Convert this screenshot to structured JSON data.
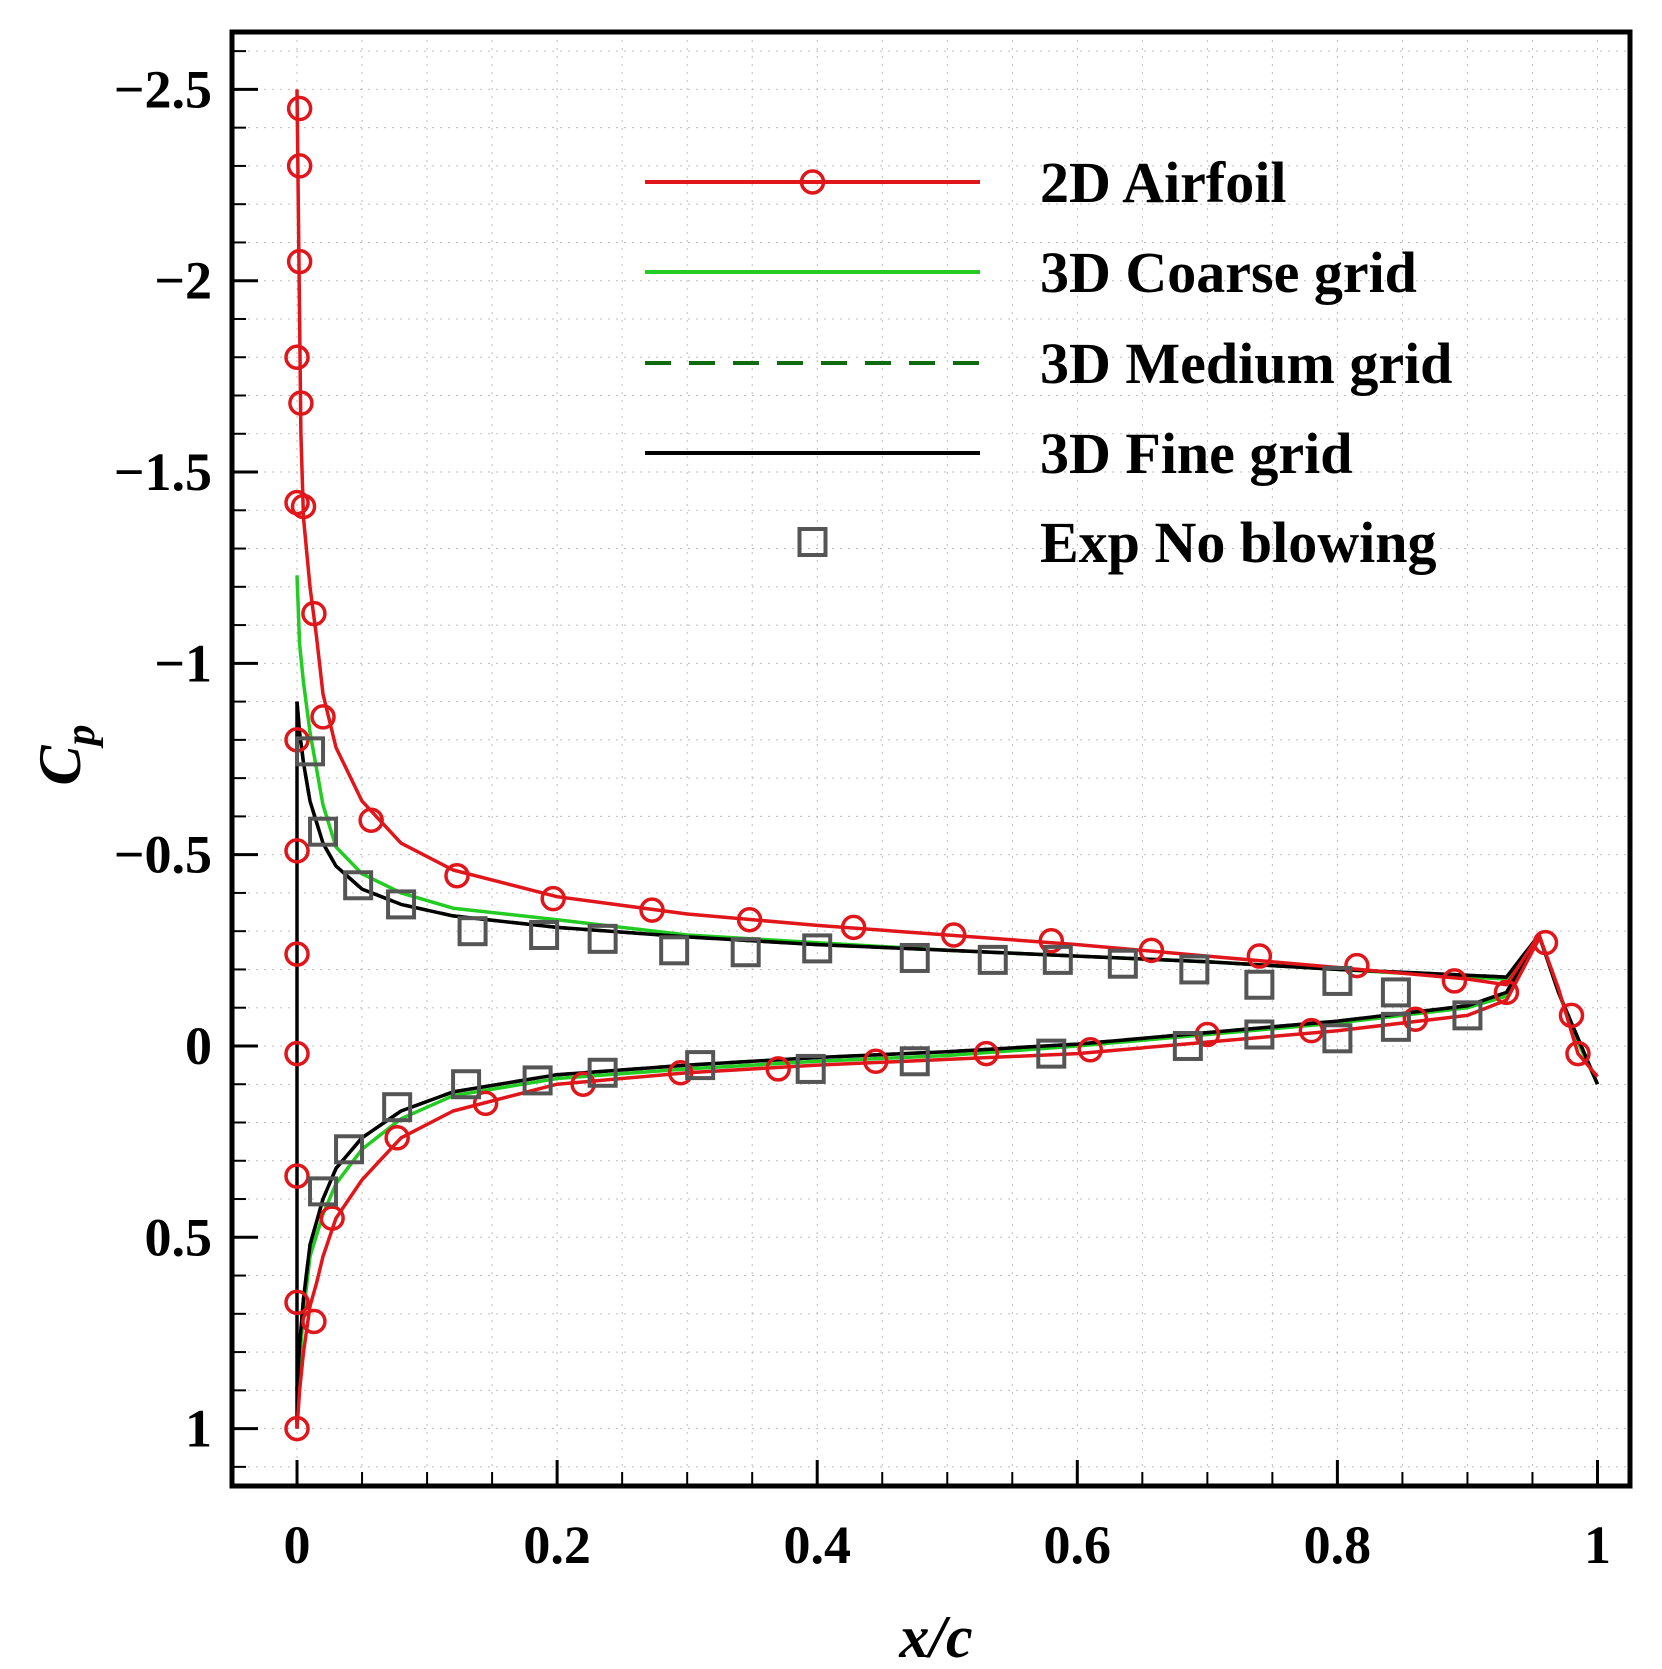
{
  "chart_data": {
    "type": "line",
    "title": "",
    "xlabel": "x/c",
    "ylabel_main": "C",
    "ylabel_sub": "p",
    "xlim": [
      -0.05,
      1.025
    ],
    "ylim": [
      1.15,
      -2.65
    ],
    "x_ticks": [
      {
        "value": 0,
        "label": "0"
      },
      {
        "value": 0.2,
        "label": "0.2"
      },
      {
        "value": 0.4,
        "label": "0.4"
      },
      {
        "value": 0.6,
        "label": "0.6"
      },
      {
        "value": 0.8,
        "label": "0.8"
      },
      {
        "value": 1,
        "label": "1"
      }
    ],
    "y_ticks": [
      {
        "value": -2.5,
        "label": "−2.5"
      },
      {
        "value": -2,
        "label": "−2"
      },
      {
        "value": -1.5,
        "label": "−1.5"
      },
      {
        "value": -1,
        "label": "−1"
      },
      {
        "value": -0.5,
        "label": "−0.5"
      },
      {
        "value": 0,
        "label": "0"
      },
      {
        "value": 0.5,
        "label": "0.5"
      },
      {
        "value": 1,
        "label": "1"
      }
    ],
    "grid": true,
    "legend_position": "top-right",
    "series": [
      {
        "name": "2D Airfoil",
        "color": "#e0161b",
        "style": "solid",
        "marker": "circle",
        "upper": [
          [
            0,
            -2.5
          ],
          [
            0.001,
            -2.2
          ],
          [
            0.002,
            -1.9
          ],
          [
            0.003,
            -1.6
          ],
          [
            0.005,
            -1.38
          ],
          [
            0.01,
            -1.2
          ],
          [
            0.015,
            -1.07
          ],
          [
            0.02,
            -0.92
          ],
          [
            0.03,
            -0.78
          ],
          [
            0.05,
            -0.64
          ],
          [
            0.08,
            -0.53
          ],
          [
            0.12,
            -0.46
          ],
          [
            0.2,
            -0.39
          ],
          [
            0.3,
            -0.345
          ],
          [
            0.4,
            -0.315
          ],
          [
            0.5,
            -0.29
          ],
          [
            0.6,
            -0.265
          ],
          [
            0.7,
            -0.235
          ],
          [
            0.8,
            -0.205
          ],
          [
            0.9,
            -0.175
          ],
          [
            0.93,
            -0.16
          ],
          [
            0.955,
            -0.29
          ],
          [
            0.97,
            -0.15
          ],
          [
            0.985,
            0.02
          ],
          [
            1.0,
            0.08
          ]
        ],
        "lower": [
          [
            0,
            1.0
          ],
          [
            0.002,
            0.9
          ],
          [
            0.005,
            0.8
          ],
          [
            0.01,
            0.68
          ],
          [
            0.015,
            0.62
          ],
          [
            0.02,
            0.55
          ],
          [
            0.03,
            0.45
          ],
          [
            0.05,
            0.35
          ],
          [
            0.08,
            0.24
          ],
          [
            0.12,
            0.17
          ],
          [
            0.2,
            0.1
          ],
          [
            0.3,
            0.07
          ],
          [
            0.4,
            0.05
          ],
          [
            0.5,
            0.035
          ],
          [
            0.6,
            0.02
          ],
          [
            0.7,
            -0.01
          ],
          [
            0.8,
            -0.04
          ],
          [
            0.9,
            -0.08
          ],
          [
            0.93,
            -0.12
          ],
          [
            0.955,
            -0.28
          ]
        ],
        "marker_points": [
          [
            0.002,
            -2.45
          ],
          [
            0.002,
            -2.3
          ],
          [
            0.002,
            -2.05
          ],
          [
            0.0,
            -1.8
          ],
          [
            0.003,
            -1.68
          ],
          [
            0.0,
            -1.42
          ],
          [
            0.005,
            -1.41
          ],
          [
            0.013,
            -1.13
          ],
          [
            0.02,
            -0.86
          ],
          [
            0.057,
            -0.59
          ],
          [
            0.123,
            -0.445
          ],
          [
            0.197,
            -0.385
          ],
          [
            0.273,
            -0.355
          ],
          [
            0.348,
            -0.33
          ],
          [
            0.428,
            -0.31
          ],
          [
            0.505,
            -0.29
          ],
          [
            0.58,
            -0.275
          ],
          [
            0.657,
            -0.25
          ],
          [
            0.74,
            -0.235
          ],
          [
            0.815,
            -0.21
          ],
          [
            0.89,
            -0.17
          ],
          [
            0.93,
            -0.14
          ],
          [
            0.96,
            -0.27
          ],
          [
            0.98,
            -0.08
          ],
          [
            0.985,
            0.02
          ],
          [
            0.0,
            -0.8
          ],
          [
            0.0,
            -0.51
          ],
          [
            0.0,
            -0.24
          ],
          [
            0.0,
            0.02
          ],
          [
            0.0,
            0.34
          ],
          [
            0.0,
            0.67
          ],
          [
            0.0,
            1.0
          ],
          [
            0.013,
            0.72
          ],
          [
            0.027,
            0.45
          ],
          [
            0.077,
            0.24
          ],
          [
            0.145,
            0.15
          ],
          [
            0.22,
            0.1
          ],
          [
            0.295,
            0.07
          ],
          [
            0.37,
            0.06
          ],
          [
            0.445,
            0.04
          ],
          [
            0.53,
            0.02
          ],
          [
            0.61,
            0.01
          ],
          [
            0.7,
            -0.03
          ],
          [
            0.78,
            -0.04
          ],
          [
            0.86,
            -0.07
          ]
        ]
      },
      {
        "name": "3D Coarse grid",
        "color": "#22cc22",
        "style": "solid",
        "marker": "none",
        "upper": [
          [
            0,
            -1.23
          ],
          [
            0.002,
            -1.05
          ],
          [
            0.005,
            -0.95
          ],
          [
            0.01,
            -0.82
          ],
          [
            0.02,
            -0.63
          ],
          [
            0.03,
            -0.52
          ],
          [
            0.05,
            -0.45
          ],
          [
            0.08,
            -0.4
          ],
          [
            0.12,
            -0.36
          ],
          [
            0.2,
            -0.33
          ],
          [
            0.3,
            -0.29
          ],
          [
            0.4,
            -0.27
          ],
          [
            0.5,
            -0.25
          ],
          [
            0.6,
            -0.235
          ],
          [
            0.7,
            -0.22
          ],
          [
            0.8,
            -0.2
          ],
          [
            0.9,
            -0.18
          ],
          [
            0.93,
            -0.175
          ],
          [
            0.955,
            -0.29
          ],
          [
            0.97,
            -0.14
          ],
          [
            0.985,
            -0.01
          ],
          [
            1.0,
            0.1
          ]
        ],
        "lower": [
          [
            0,
            0.93
          ],
          [
            0.002,
            0.82
          ],
          [
            0.005,
            0.7
          ],
          [
            0.01,
            0.55
          ],
          [
            0.02,
            0.44
          ],
          [
            0.03,
            0.36
          ],
          [
            0.05,
            0.27
          ],
          [
            0.08,
            0.19
          ],
          [
            0.12,
            0.13
          ],
          [
            0.2,
            0.085
          ],
          [
            0.3,
            0.06
          ],
          [
            0.4,
            0.04
          ],
          [
            0.5,
            0.025
          ],
          [
            0.6,
            0.0
          ],
          [
            0.7,
            -0.03
          ],
          [
            0.8,
            -0.06
          ],
          [
            0.9,
            -0.1
          ],
          [
            0.93,
            -0.13
          ],
          [
            0.955,
            -0.29
          ]
        ]
      },
      {
        "name": "3D Medium grid",
        "color": "#0f6b0f",
        "style": "dashed",
        "marker": "none",
        "upper": [
          [
            0,
            -0.9
          ],
          [
            0.002,
            -0.82
          ],
          [
            0.005,
            -0.74
          ],
          [
            0.01,
            -0.64
          ],
          [
            0.02,
            -0.53
          ],
          [
            0.03,
            -0.47
          ],
          [
            0.05,
            -0.41
          ],
          [
            0.08,
            -0.37
          ],
          [
            0.12,
            -0.34
          ],
          [
            0.2,
            -0.31
          ],
          [
            0.3,
            -0.285
          ],
          [
            0.4,
            -0.265
          ],
          [
            0.5,
            -0.25
          ],
          [
            0.6,
            -0.235
          ],
          [
            0.7,
            -0.22
          ],
          [
            0.8,
            -0.2
          ],
          [
            0.9,
            -0.185
          ],
          [
            0.93,
            -0.18
          ],
          [
            0.955,
            -0.29
          ],
          [
            0.97,
            -0.14
          ],
          [
            0.985,
            -0.02
          ],
          [
            1.0,
            0.1
          ]
        ],
        "lower": [
          [
            0,
            0.9
          ],
          [
            0.002,
            0.78
          ],
          [
            0.005,
            0.66
          ],
          [
            0.01,
            0.52
          ],
          [
            0.02,
            0.4
          ],
          [
            0.03,
            0.32
          ],
          [
            0.05,
            0.24
          ],
          [
            0.08,
            0.17
          ],
          [
            0.12,
            0.12
          ],
          [
            0.2,
            0.075
          ],
          [
            0.3,
            0.05
          ],
          [
            0.4,
            0.03
          ],
          [
            0.5,
            0.015
          ],
          [
            0.6,
            -0.005
          ],
          [
            0.7,
            -0.035
          ],
          [
            0.8,
            -0.065
          ],
          [
            0.9,
            -0.105
          ],
          [
            0.93,
            -0.14
          ],
          [
            0.955,
            -0.29
          ]
        ]
      },
      {
        "name": "3D Fine grid",
        "color": "#000000",
        "style": "solid",
        "marker": "none",
        "upper": [
          [
            0,
            -0.9
          ],
          [
            0.002,
            -0.82
          ],
          [
            0.005,
            -0.74
          ],
          [
            0.01,
            -0.64
          ],
          [
            0.02,
            -0.53
          ],
          [
            0.03,
            -0.47
          ],
          [
            0.05,
            -0.41
          ],
          [
            0.08,
            -0.37
          ],
          [
            0.12,
            -0.34
          ],
          [
            0.2,
            -0.31
          ],
          [
            0.3,
            -0.285
          ],
          [
            0.4,
            -0.265
          ],
          [
            0.5,
            -0.25
          ],
          [
            0.6,
            -0.235
          ],
          [
            0.7,
            -0.22
          ],
          [
            0.8,
            -0.2
          ],
          [
            0.9,
            -0.185
          ],
          [
            0.93,
            -0.18
          ],
          [
            0.955,
            -0.29
          ],
          [
            0.97,
            -0.14
          ],
          [
            0.985,
            -0.02
          ],
          [
            1.0,
            0.1
          ]
        ],
        "lower": [
          [
            0,
            0.9
          ],
          [
            0.002,
            0.78
          ],
          [
            0.005,
            0.66
          ],
          [
            0.01,
            0.52
          ],
          [
            0.02,
            0.4
          ],
          [
            0.03,
            0.32
          ],
          [
            0.05,
            0.24
          ],
          [
            0.08,
            0.17
          ],
          [
            0.12,
            0.12
          ],
          [
            0.2,
            0.075
          ],
          [
            0.3,
            0.05
          ],
          [
            0.4,
            0.03
          ],
          [
            0.5,
            0.015
          ],
          [
            0.6,
            -0.005
          ],
          [
            0.7,
            -0.035
          ],
          [
            0.8,
            -0.065
          ],
          [
            0.9,
            -0.105
          ],
          [
            0.93,
            -0.14
          ],
          [
            0.955,
            -0.29
          ]
        ],
        "extra": [
          [
            [
              0.0,
              -0.9
            ],
            [
              0.0,
              1.0
            ]
          ]
        ]
      },
      {
        "name": "Exp No blowing",
        "color": "#555555",
        "style": "none",
        "marker": "square",
        "marker_points": [
          [
            0.01,
            -0.77
          ],
          [
            0.02,
            -0.56
          ],
          [
            0.047,
            -0.42
          ],
          [
            0.08,
            -0.37
          ],
          [
            0.135,
            -0.3
          ],
          [
            0.19,
            -0.29
          ],
          [
            0.235,
            -0.28
          ],
          [
            0.29,
            -0.25
          ],
          [
            0.345,
            -0.245
          ],
          [
            0.4,
            -0.255
          ],
          [
            0.475,
            -0.23
          ],
          [
            0.535,
            -0.225
          ],
          [
            0.585,
            -0.225
          ],
          [
            0.635,
            -0.215
          ],
          [
            0.69,
            -0.2
          ],
          [
            0.74,
            -0.16
          ],
          [
            0.8,
            -0.17
          ],
          [
            0.845,
            -0.14
          ],
          [
            0.9,
            -0.08
          ],
          [
            0.02,
            0.38
          ],
          [
            0.04,
            0.27
          ],
          [
            0.077,
            0.16
          ],
          [
            0.13,
            0.1
          ],
          [
            0.185,
            0.09
          ],
          [
            0.235,
            0.07
          ],
          [
            0.31,
            0.05
          ],
          [
            0.395,
            0.06
          ],
          [
            0.475,
            0.04
          ],
          [
            0.58,
            0.02
          ],
          [
            0.685,
            0.0
          ],
          [
            0.74,
            -0.03
          ],
          [
            0.8,
            -0.02
          ],
          [
            0.845,
            -0.05
          ]
        ]
      }
    ]
  }
}
